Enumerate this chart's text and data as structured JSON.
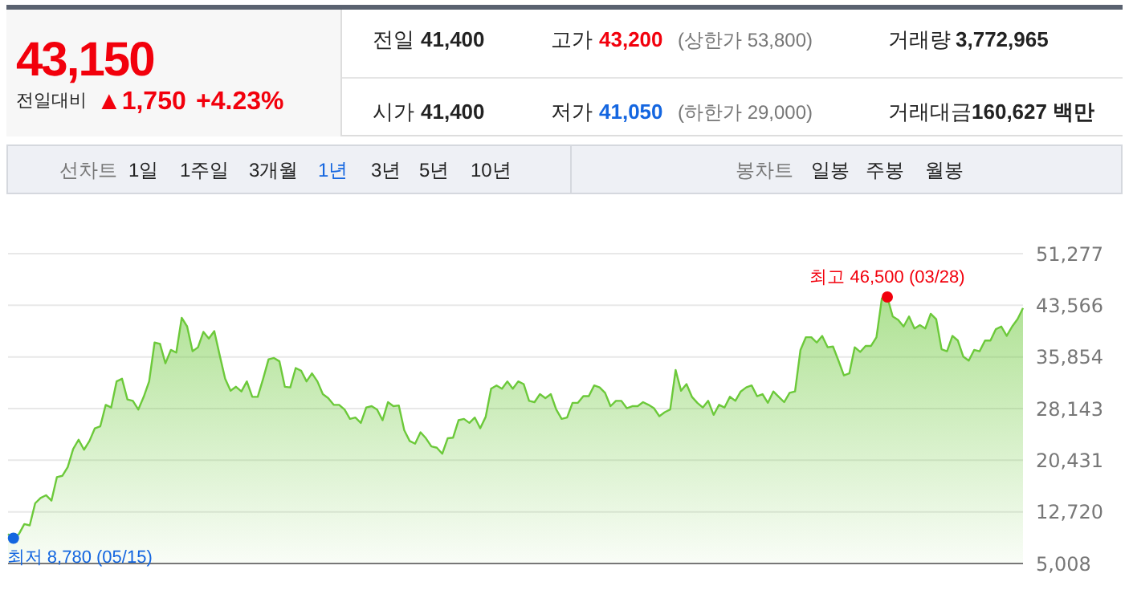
{
  "chart_data": {
    "type": "area",
    "categories": [
      null,
      null,
      null,
      null,
      null,
      null,
      null,
      null,
      null,
      null,
      null,
      null,
      null,
      null,
      null,
      null,
      null,
      null,
      null,
      null,
      null,
      null,
      null,
      null,
      null,
      null,
      null,
      null,
      null,
      null,
      null,
      null,
      null,
      null,
      null,
      null,
      null,
      null,
      null,
      null,
      null,
      null,
      null,
      null,
      null,
      null,
      null,
      null,
      null,
      null,
      null,
      null,
      null,
      null,
      null,
      null,
      null,
      null,
      null,
      null,
      null,
      null,
      null,
      null,
      null,
      null,
      null,
      null,
      null,
      null,
      null,
      null,
      null,
      null,
      null,
      null,
      null,
      null,
      null,
      null,
      null,
      null,
      null,
      null,
      null,
      null,
      null,
      null,
      null,
      null,
      null,
      null,
      null,
      null,
      null,
      null,
      null,
      null,
      null,
      null,
      null,
      null,
      null,
      null,
      null,
      null,
      null,
      null,
      null,
      null,
      null,
      null,
      null,
      null,
      null,
      null,
      null,
      null,
      null,
      null,
      null,
      null,
      null,
      null,
      null,
      null,
      null,
      null,
      null,
      null,
      null,
      null,
      null,
      null,
      null,
      null,
      null,
      null,
      null,
      null,
      null,
      null,
      null,
      null,
      null,
      null,
      null,
      null,
      null,
      null,
      null,
      null,
      null,
      null,
      null,
      null,
      null,
      null,
      null,
      null,
      null,
      null,
      null,
      null,
      null,
      null,
      null,
      null,
      null,
      null,
      null,
      null,
      null,
      null,
      null,
      null,
      null,
      null,
      null,
      null,
      null,
      null,
      null,
      null,
      null,
      null,
      null,
      null
    ],
    "series": [
      {
        "color": "#6cc93a",
        "values": [
          9400,
          8780,
          9400,
          10900,
          10700,
          14000,
          14800,
          15200,
          14400,
          17900,
          18100,
          19400,
          22100,
          23500,
          22000,
          23300,
          25200,
          25500,
          28700,
          28300,
          32200,
          32600,
          29500,
          29300,
          28000,
          29900,
          32200,
          38000,
          37800,
          34900,
          36900,
          36500,
          41700,
          40400,
          36700,
          37300,
          39600,
          38600,
          39700,
          36100,
          32600,
          30800,
          31400,
          30700,
          32200,
          29900,
          29900,
          32600,
          35500,
          35700,
          35200,
          31400,
          31300,
          34200,
          33800,
          32200,
          33400,
          32200,
          30300,
          29700,
          28700,
          28700,
          28000,
          26600,
          26800,
          26000,
          28300,
          28500,
          28000,
          26400,
          29100,
          28500,
          28600,
          24900,
          23300,
          22900,
          24600,
          23700,
          22500,
          22300,
          21400,
          23700,
          23800,
          26400,
          26600,
          26000,
          26800,
          25200,
          26900,
          31100,
          31600,
          31100,
          32200,
          31100,
          32200,
          31800,
          29300,
          29100,
          30300,
          29700,
          30300,
          28000,
          26600,
          26800,
          29000,
          29000,
          30000,
          30000,
          31600,
          31300,
          30500,
          28500,
          29300,
          29300,
          28200,
          28500,
          28500,
          29100,
          28700,
          28200,
          27000,
          27600,
          28000,
          33900,
          30800,
          31800,
          29900,
          29000,
          28300,
          29300,
          27200,
          28700,
          28300,
          29900,
          29300,
          30700,
          31300,
          31600,
          30000,
          30300,
          29000,
          30700,
          29900,
          29100,
          30500,
          30700,
          36900,
          38800,
          38800,
          38000,
          39000,
          37300,
          37400,
          35300,
          33100,
          33400,
          37300,
          36600,
          37500,
          37500,
          38800,
          44600,
          44800,
          41900,
          41400,
          40400,
          41900,
          40100,
          40600,
          40100,
          42300,
          41500,
          37000,
          36700,
          39000,
          38300,
          35900,
          35300,
          36900,
          36700,
          38300,
          38300,
          40000,
          40400,
          39000,
          40400,
          41500,
          43150
        ]
      }
    ],
    "ylim": [
      5008,
      51277
    ],
    "yticks": [
      {
        "value": 5008,
        "label": "5,008"
      },
      {
        "value": 12720,
        "label": "12,720"
      },
      {
        "value": 20431,
        "label": "20,431"
      },
      {
        "value": 28143,
        "label": "28,143"
      },
      {
        "value": 35854,
        "label": "35,854"
      },
      {
        "value": 43566,
        "label": "43,566"
      },
      {
        "value": 51277,
        "label": "51,277"
      }
    ],
    "grid": "y",
    "annotations": [
      "43,150",
      "전일대비",
      "▲1,750",
      "+4.23%",
      "전일",
      "41,400",
      "고가",
      "43,200",
      "(상한가 53,800)",
      "거래량",
      "3,772,965",
      "시가",
      "41,400",
      "저가",
      "41,050",
      "(하한가 29,000)",
      "거래대금",
      "160,627 백만",
      "선차트",
      "1일",
      "1주일",
      "3개월",
      "1년",
      "3년",
      "5년",
      "10년",
      "봉차트",
      "일봉",
      "주봉",
      "월봉",
      "최고 46,500 (03/28)",
      "최저 8,780 (05/15)"
    ]
  }
}
